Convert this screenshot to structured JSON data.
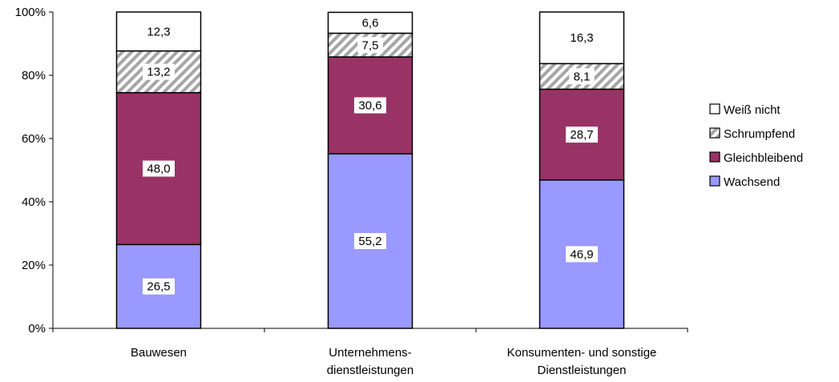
{
  "chart_data": {
    "type": "bar",
    "stacked": true,
    "percent": true,
    "categories": [
      [
        "Bauwesen"
      ],
      [
        "Unternehmens-",
        "dienstleistungen"
      ],
      [
        "Konsumenten- und sonstige",
        "Dienstleistungen"
      ]
    ],
    "series": [
      {
        "name": "Wachsend",
        "values": [
          26.5,
          55.2,
          46.9
        ],
        "labels": [
          "26,5",
          "55,2",
          "46,9"
        ],
        "color": "#9999ff",
        "pattern": "solid"
      },
      {
        "name": "Gleichbleibend",
        "values": [
          48.0,
          30.6,
          28.7
        ],
        "labels": [
          "48,0",
          "30,6",
          "28,7"
        ],
        "color": "#993366",
        "pattern": "solid"
      },
      {
        "name": "Schrumpfend",
        "values": [
          13.2,
          7.5,
          8.1
        ],
        "labels": [
          "13,2",
          "7,5",
          "8,1"
        ],
        "color": "#b3b3b3",
        "pattern": "diagonal-stripes"
      },
      {
        "name": "Weiß nicht",
        "values": [
          12.3,
          6.6,
          16.3
        ],
        "labels": [
          "12,3",
          "6,6",
          "16,3"
        ],
        "color": "#ffffff",
        "pattern": "solid"
      }
    ],
    "ylim": [
      0,
      100
    ],
    "yticks": [
      "0%",
      "20%",
      "40%",
      "60%",
      "80%",
      "100%"
    ],
    "grid": false,
    "legend_position": "right",
    "legend_order": [
      "Weiß nicht",
      "Schrumpfend",
      "Gleichbleibend",
      "Wachsend"
    ],
    "title": "",
    "xlabel": "",
    "ylabel": ""
  }
}
